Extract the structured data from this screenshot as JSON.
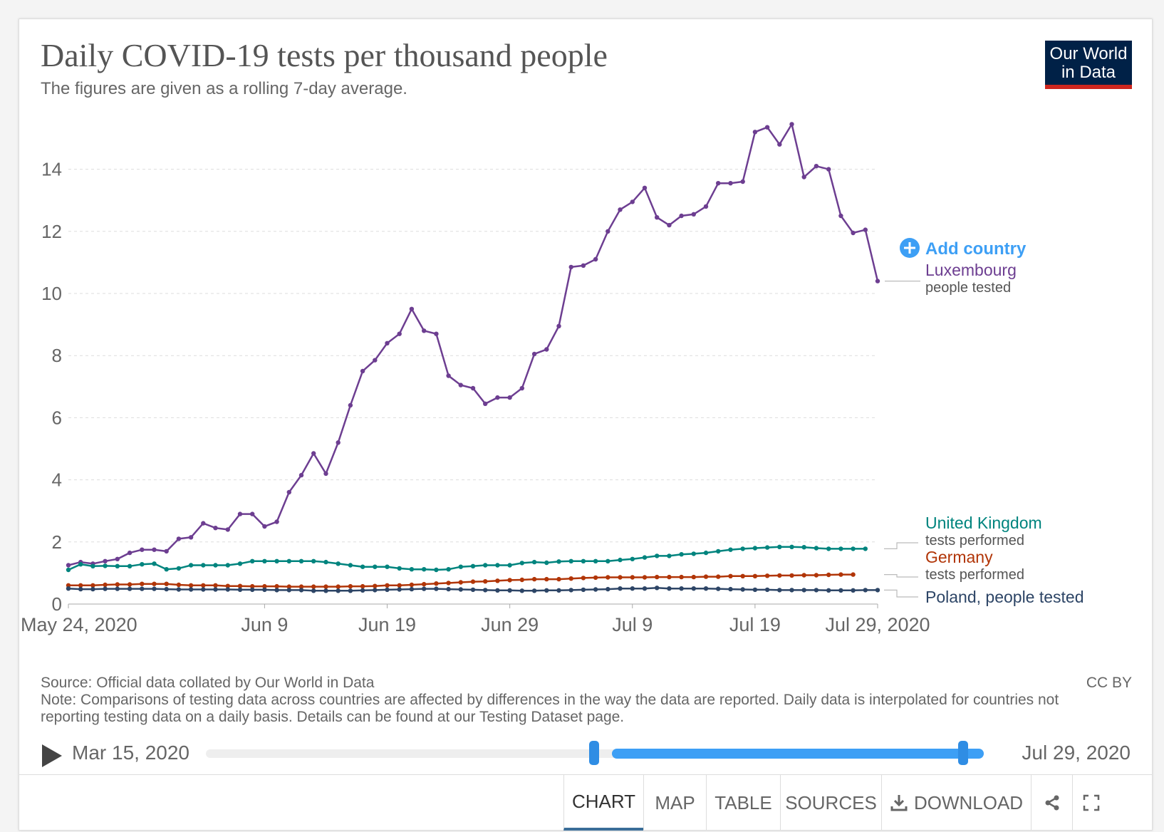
{
  "header": {
    "title": "Daily COVID-19 tests per thousand people",
    "subtitle": "The figures are given as a rolling 7-day average.",
    "logo_line1": "Our World",
    "logo_line2": "in Data"
  },
  "add_country_label": "Add country",
  "chart_data": {
    "type": "line",
    "yticks": [
      0,
      2,
      4,
      6,
      8,
      10,
      12,
      14
    ],
    "ylim": [
      0,
      14.8
    ],
    "x_tick_labels": [
      "May 24, 2020",
      "Jun 9",
      "Jun 19",
      "Jun 29",
      "Jul 9",
      "Jul 19",
      "Jul 29, 2020"
    ],
    "x_tick_days": [
      0,
      16,
      26,
      36,
      46,
      56,
      66
    ],
    "x_start": "2020-05-24",
    "x_end": "2020-07-29",
    "grid": "horizontal dashed",
    "series": [
      {
        "name": "Luxembourg",
        "name_suffix": "people tested",
        "color": "#6d3e91",
        "values": [
          1.25,
          1.35,
          1.3,
          1.38,
          1.45,
          1.65,
          1.75,
          1.75,
          1.7,
          2.1,
          2.15,
          2.6,
          2.45,
          2.4,
          2.9,
          2.9,
          2.5,
          2.65,
          3.6,
          4.15,
          4.85,
          4.2,
          5.2,
          6.4,
          7.5,
          7.85,
          8.4,
          8.7,
          9.5,
          8.8,
          8.7,
          7.35,
          7.05,
          6.95,
          6.45,
          6.65,
          6.65,
          6.95,
          8.05,
          8.2,
          8.95,
          10.85,
          10.9,
          11.1,
          12.0,
          12.7,
          12.95,
          13.4,
          12.45,
          12.2,
          12.5,
          12.55,
          12.8,
          13.55,
          13.55,
          13.6,
          15.2,
          15.35,
          14.8,
          15.45,
          13.75,
          14.1,
          14.0,
          12.5,
          11.95,
          12.05,
          10.4
        ]
      },
      {
        "name": "United Kingdom",
        "name_suffix": "tests performed",
        "color": "#00847e",
        "values": [
          1.1,
          1.28,
          1.22,
          1.23,
          1.22,
          1.22,
          1.28,
          1.3,
          1.12,
          1.15,
          1.25,
          1.25,
          1.25,
          1.25,
          1.3,
          1.38,
          1.38,
          1.38,
          1.38,
          1.38,
          1.38,
          1.35,
          1.3,
          1.25,
          1.2,
          1.2,
          1.2,
          1.15,
          1.12,
          1.12,
          1.1,
          1.12,
          1.2,
          1.22,
          1.25,
          1.25,
          1.25,
          1.32,
          1.35,
          1.33,
          1.37,
          1.38,
          1.38,
          1.38,
          1.38,
          1.42,
          1.45,
          1.5,
          1.55,
          1.55,
          1.6,
          1.62,
          1.65,
          1.7,
          1.75,
          1.78,
          1.8,
          1.82,
          1.84,
          1.84,
          1.83,
          1.8,
          1.78,
          1.78,
          1.78,
          1.78
        ]
      },
      {
        "name": "Germany",
        "name_suffix": "tests performed",
        "color": "#b13507",
        "values": [
          0.6,
          0.6,
          0.6,
          0.62,
          0.63,
          0.63,
          0.65,
          0.65,
          0.65,
          0.62,
          0.6,
          0.6,
          0.6,
          0.58,
          0.58,
          0.57,
          0.57,
          0.57,
          0.56,
          0.56,
          0.56,
          0.56,
          0.56,
          0.57,
          0.57,
          0.58,
          0.6,
          0.6,
          0.62,
          0.64,
          0.66,
          0.68,
          0.7,
          0.72,
          0.73,
          0.75,
          0.77,
          0.78,
          0.8,
          0.8,
          0.8,
          0.82,
          0.84,
          0.85,
          0.86,
          0.86,
          0.86,
          0.86,
          0.87,
          0.87,
          0.87,
          0.87,
          0.88,
          0.88,
          0.9,
          0.9,
          0.9,
          0.91,
          0.92,
          0.92,
          0.93,
          0.93,
          0.94,
          0.95,
          0.95
        ]
      },
      {
        "name": "Poland",
        "name_suffix": "people tested",
        "color": "#2d4566",
        "values": [
          0.5,
          0.48,
          0.48,
          0.49,
          0.49,
          0.49,
          0.49,
          0.49,
          0.48,
          0.47,
          0.47,
          0.47,
          0.47,
          0.47,
          0.46,
          0.46,
          0.46,
          0.45,
          0.45,
          0.45,
          0.43,
          0.43,
          0.43,
          0.43,
          0.44,
          0.45,
          0.46,
          0.47,
          0.48,
          0.49,
          0.49,
          0.48,
          0.47,
          0.46,
          0.45,
          0.44,
          0.44,
          0.43,
          0.43,
          0.44,
          0.44,
          0.45,
          0.46,
          0.47,
          0.48,
          0.5,
          0.5,
          0.5,
          0.52,
          0.5,
          0.5,
          0.5,
          0.5,
          0.49,
          0.48,
          0.47,
          0.46,
          0.46,
          0.45,
          0.45,
          0.45,
          0.45,
          0.44,
          0.44,
          0.44,
          0.45,
          0.45
        ]
      }
    ]
  },
  "footer": {
    "source": "Source: Official data collated by Our World in Data",
    "license": "CC BY",
    "note": "Note: Comparisons of testing data across countries are affected by differences in the way the data are reported. Daily data is interpolated for countries not reporting testing data on a daily basis. Details can be found at our Testing Dataset page."
  },
  "timeline": {
    "start_label": "Mar 15, 2020",
    "end_label": "Jul 29, 2020",
    "selected_start_fraction": 0.5,
    "selected_end_fraction": 1.0
  },
  "tabs": {
    "chart": "CHART",
    "map": "MAP",
    "table": "TABLE",
    "sources": "SOURCES",
    "download": "DOWNLOAD"
  }
}
